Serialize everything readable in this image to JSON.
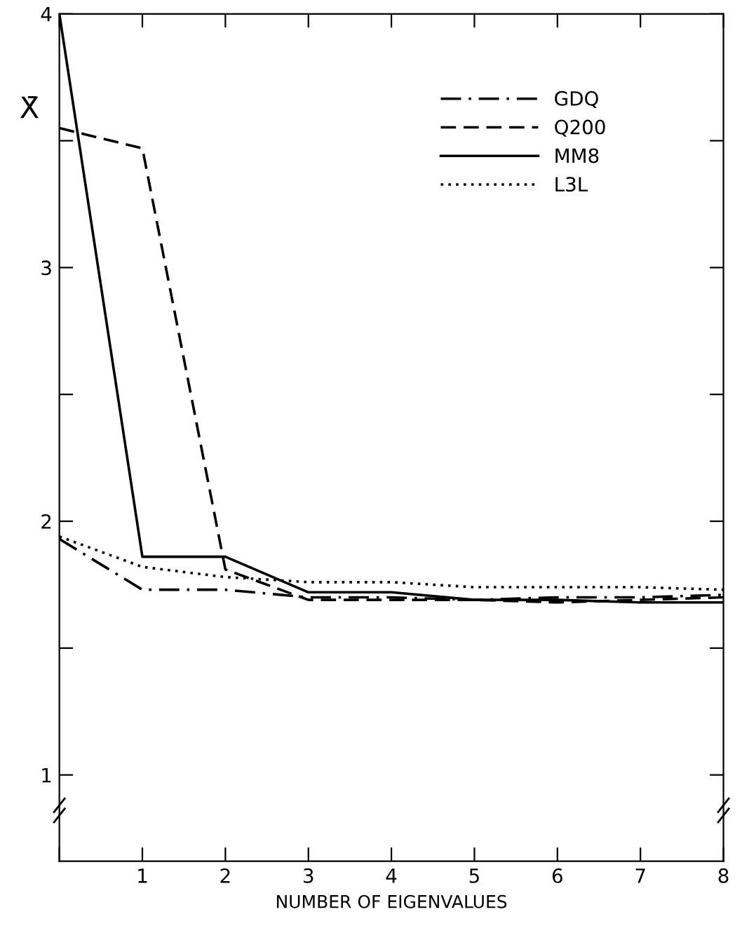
{
  "chart_data": {
    "type": "line",
    "xlabel": "NUMBER OF EIGENVALUES",
    "ylabel": "X̄",
    "x": [
      0,
      1,
      2,
      3,
      4,
      5,
      6,
      7,
      8
    ],
    "series": [
      {
        "name": "GDQ",
        "color": "#000000",
        "line_style": "dashdot",
        "values": [
          1.93,
          1.73,
          1.73,
          1.7,
          1.7,
          1.69,
          1.7,
          1.7,
          1.71
        ]
      },
      {
        "name": "Q200",
        "color": "#000000",
        "line_style": "dashed",
        "values": [
          3.55,
          3.47,
          1.81,
          1.69,
          1.69,
          1.69,
          1.68,
          1.69,
          1.7
        ]
      },
      {
        "name": "MM8",
        "color": "#000000",
        "line_style": "solid",
        "values": [
          4.0,
          1.86,
          1.86,
          1.72,
          1.72,
          1.69,
          1.69,
          1.68,
          1.68
        ]
      },
      {
        "name": "L3L",
        "color": "#000000",
        "line_style": "dotted",
        "values": [
          1.94,
          1.82,
          1.78,
          1.76,
          1.76,
          1.74,
          1.74,
          1.74,
          1.73
        ]
      }
    ],
    "xlim": [
      0,
      8
    ],
    "xticks": [
      {
        "value": 0,
        "label": null
      },
      1,
      2,
      3,
      4,
      5,
      6,
      7,
      8
    ],
    "ylim": [
      0.66,
      4
    ],
    "yticks": [
      1,
      {
        "value": 1.5,
        "label": null
      },
      2,
      {
        "value": 2.5,
        "label": null
      },
      3,
      {
        "value": 3.5,
        "label": null
      },
      4
    ],
    "grid": false,
    "legend": "top right",
    "marker": "none"
  }
}
